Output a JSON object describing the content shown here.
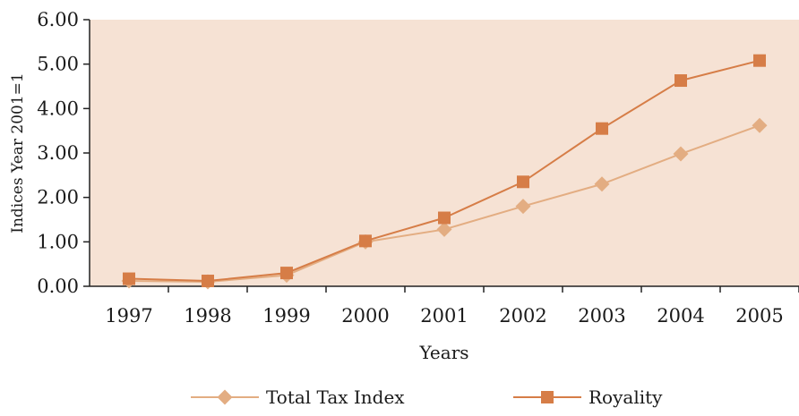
{
  "chart_data": {
    "type": "line",
    "xlabel": "Years",
    "ylabel": "Indices Year 2001=1",
    "categories": [
      "1997",
      "1998",
      "1999",
      "2000",
      "2001",
      "2002",
      "2003",
      "2004",
      "2005"
    ],
    "ylim": [
      0,
      6
    ],
    "yticks": [
      "0.00",
      "1.00",
      "2.00",
      "3.00",
      "4.00",
      "5.00",
      "6.00"
    ],
    "series": [
      {
        "name": "Total Tax Index",
        "marker": "diamond",
        "color": "#e3ad82",
        "values": [
          0.12,
          0.1,
          0.25,
          1.0,
          1.28,
          1.8,
          2.3,
          2.98,
          3.62
        ]
      },
      {
        "name": "Royality",
        "marker": "square",
        "color": "#d67d47",
        "values": [
          0.17,
          0.12,
          0.3,
          1.02,
          1.54,
          2.35,
          3.55,
          4.63,
          5.08
        ]
      }
    ],
    "plot_background": "#f6e2d4",
    "axis_color": "#222222",
    "grid": false,
    "legend_position": "bottom"
  }
}
